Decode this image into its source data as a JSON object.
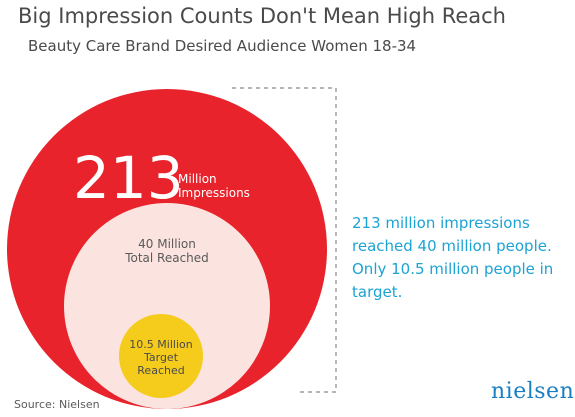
{
  "title": "Big Impression Counts Don't Mean High Reach",
  "subtitle": "Beauty Care Brand Desired Audience Women 18-34",
  "chart_data": {
    "type": "bubble",
    "unit": "Million",
    "items": [
      {
        "value": 213,
        "value_text": "213",
        "label_line1": "Million",
        "label_line2": "Impressions",
        "color": "#e8232c"
      },
      {
        "value": 40,
        "value_text": "40 Million",
        "label_line1": "Total Reached",
        "color": "#fbe3df"
      },
      {
        "value": 10.5,
        "value_text": "10.5 Million",
        "label_line1": "Target",
        "label_line2": "Reached",
        "color": "#f5cc1c"
      }
    ]
  },
  "note": "213 million impressions reached 40 million people. Only 10.5 million people in target.",
  "source": "Source: Nielsen",
  "logo": "nielsen",
  "colors": {
    "accent": "#1ba3d4",
    "red": "#e8232c",
    "pink": "#fbe3df",
    "yellow": "#f5cc1c",
    "bracket": "#8a8a8a"
  }
}
